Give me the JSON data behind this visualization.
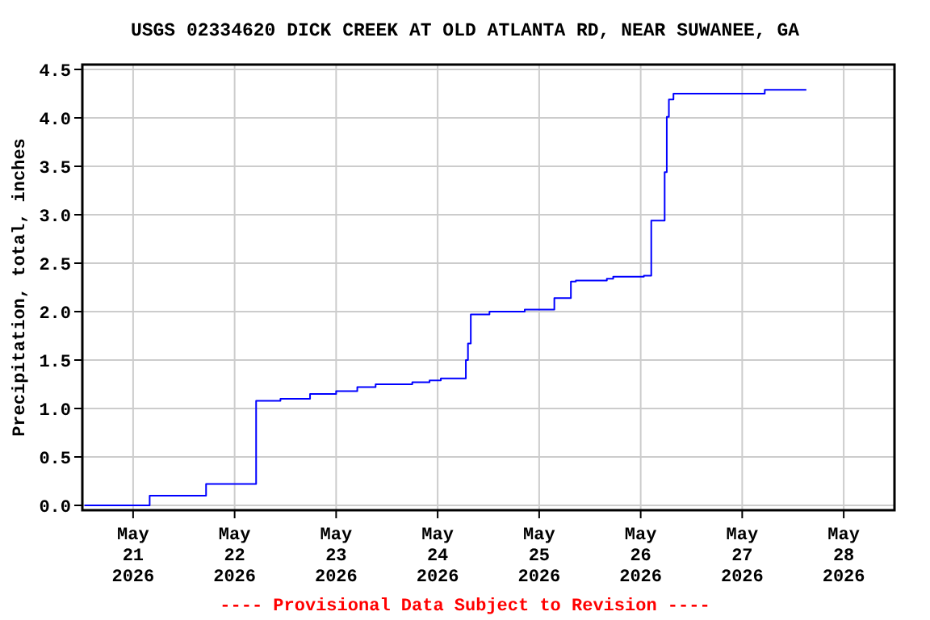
{
  "chart_data": {
    "type": "step",
    "title": "USGS 02334620 DICK CREEK AT OLD ATLANTA RD, NEAR SUWANEE, GA",
    "ylabel": "Precipitation, total, inches",
    "annotations": [
      "---- Provisional Data Subject to Revision ----"
    ],
    "x": [
      "2026-05-20T12:30",
      "2026-05-21T03:55",
      "2026-05-21T17:15",
      "2026-05-22T05:05",
      "2026-05-22T10:50",
      "2026-05-22T17:50",
      "2026-05-23T00:00",
      "2026-05-23T05:00",
      "2026-05-23T09:20",
      "2026-05-23T18:00",
      "2026-05-23T22:05",
      "2026-05-24T00:45",
      "2026-05-24T06:40",
      "2026-05-24T07:10",
      "2026-05-24T07:50",
      "2026-05-24T12:15",
      "2026-05-24T20:35",
      "2026-05-25T03:35",
      "2026-05-25T07:30",
      "2026-05-25T08:40",
      "2026-05-25T16:00",
      "2026-05-25T17:30",
      "2026-05-26T00:45",
      "2026-05-26T02:30",
      "2026-05-26T05:40",
      "2026-05-26T06:10",
      "2026-05-26T06:40",
      "2026-05-26T07:45",
      "2026-05-27T05:20",
      "2026-05-27T15:10"
    ],
    "series": [
      {
        "color": "#0000ff",
        "values": [
          0.0,
          0.1,
          0.22,
          1.08,
          1.1,
          1.15,
          1.18,
          1.22,
          1.25,
          1.27,
          1.29,
          1.31,
          1.5,
          1.67,
          1.97,
          2.0,
          2.02,
          2.14,
          2.31,
          2.32,
          2.34,
          2.36,
          2.37,
          2.94,
          3.44,
          4.01,
          4.19,
          4.25,
          4.29,
          4.29
        ]
      }
    ],
    "xlim": [
      "2026-05-20T12:00",
      "2026-05-28T12:00"
    ],
    "xticks": [
      {
        "value": "2026-05-21",
        "label": "May\n21\n2026"
      },
      {
        "value": "2026-05-22",
        "label": "May\n22\n2026"
      },
      {
        "value": "2026-05-23",
        "label": "May\n23\n2026"
      },
      {
        "value": "2026-05-24",
        "label": "May\n24\n2026"
      },
      {
        "value": "2026-05-25",
        "label": "May\n25\n2026"
      },
      {
        "value": "2026-05-26",
        "label": "May\n26\n2026"
      },
      {
        "value": "2026-05-27",
        "label": "May\n27\n2026"
      },
      {
        "value": "2026-05-28",
        "label": "May\n28\n2026"
      }
    ],
    "ylim": [
      -0.05,
      4.55
    ],
    "yticks": [
      {
        "value": 0,
        "label": "0.0"
      },
      {
        "value": 0.5,
        "label": "0.5"
      },
      {
        "value": 1,
        "label": "1.0"
      },
      {
        "value": 1.5,
        "label": "1.5"
      },
      {
        "value": 2,
        "label": "2.0"
      },
      {
        "value": 2.5,
        "label": "2.5"
      },
      {
        "value": 3,
        "label": "3.0"
      },
      {
        "value": 3.5,
        "label": "3.5"
      },
      {
        "value": 4,
        "label": "4.0"
      },
      {
        "value": 4.5,
        "label": "4.5"
      }
    ],
    "grid": true
  }
}
